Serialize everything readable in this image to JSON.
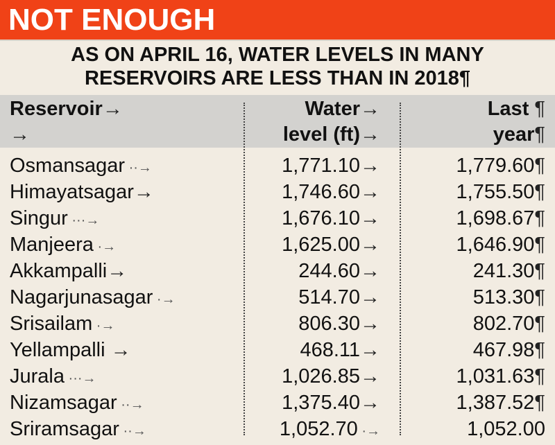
{
  "banner": {
    "title": "NOT ENOUGH"
  },
  "subhead": {
    "line1": "AS ON APRIL 16, WATER LEVELS IN MANY",
    "line2": "RESERVOIRS ARE LESS THAN IN 2018¶"
  },
  "table": {
    "headers": {
      "reservoir_line1": "Reservoir",
      "reservoir_line2": "",
      "water_level_line1": "Water",
      "water_level_line2": "level (ft)",
      "last_year_line1": "Last",
      "last_year_line2": "year"
    },
    "rows": [
      {
        "reservoir": "Osmansagar",
        "water_level": "1,771.10",
        "last_year": "1,779.60"
      },
      {
        "reservoir": "Himayatsagar",
        "water_level": "1,746.60",
        "last_year": "1,755.50"
      },
      {
        "reservoir": "Singur",
        "water_level": "1,676.10",
        "last_year": "1,698.67"
      },
      {
        "reservoir": "Manjeera",
        "water_level": "1,625.00",
        "last_year": "1,646.90"
      },
      {
        "reservoir": "Akkampalli",
        "water_level": "244.60",
        "last_year": "241.30"
      },
      {
        "reservoir": "Nagarjunasagar",
        "water_level": "514.70",
        "last_year": "513.30"
      },
      {
        "reservoir": "Srisailam",
        "water_level": "806.30",
        "last_year": "802.70"
      },
      {
        "reservoir": "Yellampalli",
        "water_level": "468.11",
        "last_year": "467.98"
      },
      {
        "reservoir": "Jurala",
        "water_level": "1,026.85",
        "last_year": "1,031.63"
      },
      {
        "reservoir": "Nizamsagar",
        "water_level": "1,375.40",
        "last_year": "1,387.52"
      },
      {
        "reservoir": "Sriramsagar",
        "water_level": "1,052.70",
        "last_year": "1,052.00"
      }
    ]
  }
}
